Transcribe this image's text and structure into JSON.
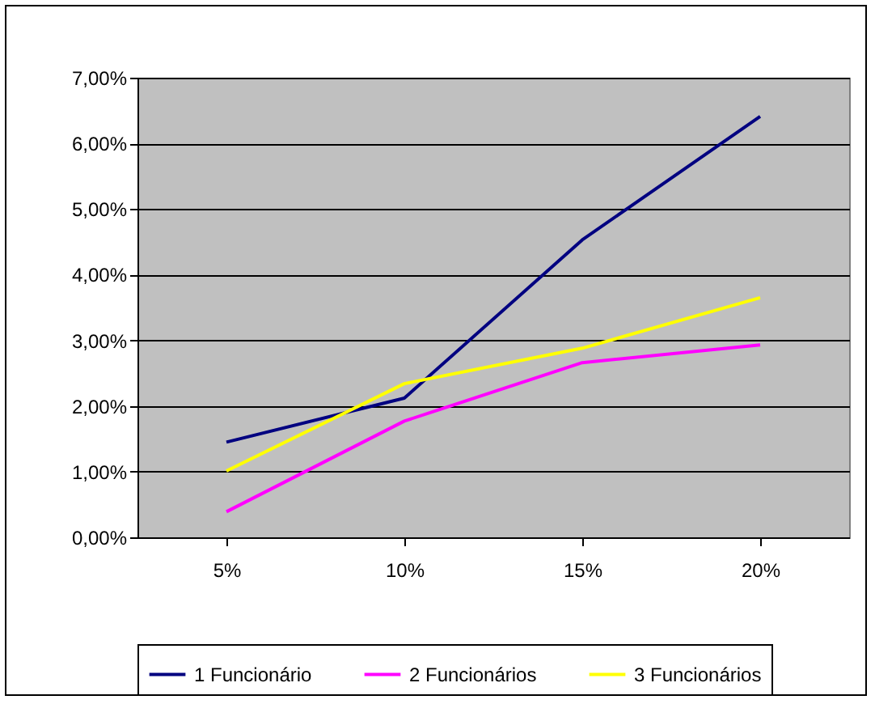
{
  "chart_data": {
    "type": "line",
    "categories": [
      "5%",
      "10%",
      "15%",
      "20%"
    ],
    "series": [
      {
        "name": "1 Funcionário",
        "color": "#000080",
        "values": [
          1.45,
          2.12,
          4.53,
          6.41
        ]
      },
      {
        "name": "2 Funcionários",
        "color": "#ff00ff",
        "values": [
          0.39,
          1.77,
          2.66,
          2.93
        ]
      },
      {
        "name": "3 Funcionários",
        "color": "#ffff00",
        "values": [
          1.01,
          2.34,
          2.88,
          3.65
        ]
      }
    ],
    "ylim": [
      0,
      7
    ],
    "yticks": [
      {
        "value": 0,
        "label": "0,00%"
      },
      {
        "value": 1,
        "label": "1,00%"
      },
      {
        "value": 2,
        "label": "2,00%"
      },
      {
        "value": 3,
        "label": "3,00%"
      },
      {
        "value": 4,
        "label": "4,00%"
      },
      {
        "value": 5,
        "label": "5,00%"
      },
      {
        "value": 6,
        "label": "6,00%"
      },
      {
        "value": 7,
        "label": "7,00%"
      }
    ],
    "grid": "y",
    "legend": "bottom",
    "marker": "none",
    "line_style": "solid"
  }
}
